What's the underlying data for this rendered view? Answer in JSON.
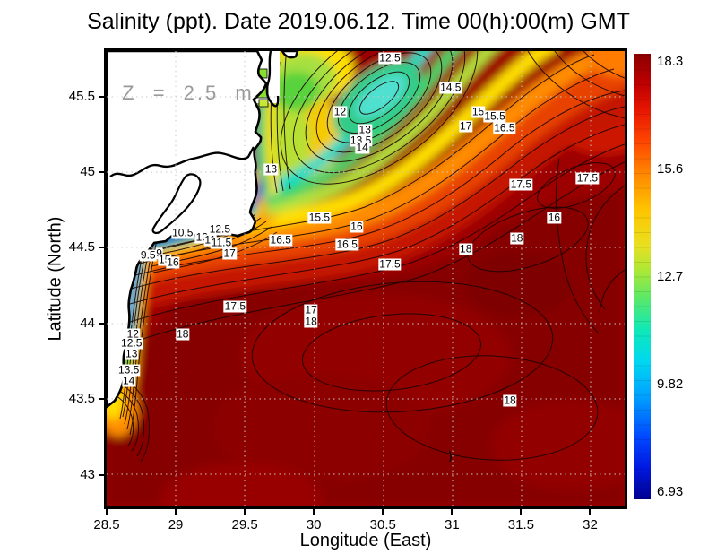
{
  "title": "Salinity (ppt). Date 2019.06.12. Time 00(h):00(m) GMT",
  "chart_data": {
    "type": "heatmap",
    "variable": "Salinity (ppt)",
    "date": "2019.06.12",
    "time": "00(h):00(m) GMT",
    "title": "Salinity (ppt). Date 2019.06.12. Time 00(h):00(m) GMT",
    "xlabel": "Longitude (East)",
    "ylabel": "Latitude (North)",
    "xlim": [
      28.5,
      32.25
    ],
    "ylim": [
      42.79,
      45.8
    ],
    "grid": true,
    "xticks": [
      {
        "label": "28.5",
        "value": 28.5
      },
      {
        "label": "29",
        "value": 29
      },
      {
        "label": "29.5",
        "value": 29.5
      },
      {
        "label": "30",
        "value": 30
      },
      {
        "label": "30.5",
        "value": 30.5
      },
      {
        "label": "31",
        "value": 31
      },
      {
        "label": "31.5",
        "value": 31.5
      },
      {
        "label": "32",
        "value": 32
      }
    ],
    "yticks": [
      {
        "label": "43",
        "value": 43
      },
      {
        "label": "43.5",
        "value": 43.5
      },
      {
        "label": "44",
        "value": 44
      },
      {
        "label": "44.5",
        "value": 44.5
      },
      {
        "label": "45",
        "value": 45
      },
      {
        "label": "45.5",
        "value": 45.5
      }
    ],
    "annotation": {
      "text": "Z = 2.5 m",
      "lon": 29.09,
      "lat": 45.52,
      "color": "#9a9a9a"
    },
    "colorbar": {
      "min": 6.93,
      "max": 18.3,
      "colormap": "jet",
      "position": "right",
      "ticks": [
        "18.3",
        "15.6",
        "12.7",
        "9.82",
        "6.93"
      ]
    },
    "contour_interval": 0.5,
    "contour_labels": [
      {
        "v": "12.5",
        "lon": 30.55,
        "lat": 45.75
      },
      {
        "v": "14.5",
        "lon": 30.99,
        "lat": 45.56
      },
      {
        "v": "15",
        "lon": 31.19,
        "lat": 45.4
      },
      {
        "v": "15.5",
        "lon": 31.31,
        "lat": 45.37
      },
      {
        "v": "17",
        "lon": 31.1,
        "lat": 45.3
      },
      {
        "v": "16.5",
        "lon": 31.38,
        "lat": 45.29
      },
      {
        "v": "12",
        "lon": 30.19,
        "lat": 45.4
      },
      {
        "v": "13",
        "lon": 30.37,
        "lat": 45.28
      },
      {
        "v": "13.5",
        "lon": 30.34,
        "lat": 45.21
      },
      {
        "v": "14",
        "lon": 30.35,
        "lat": 45.16
      },
      {
        "v": "13",
        "lon": 29.69,
        "lat": 45.02
      },
      {
        "v": "17.5",
        "lon": 31.98,
        "lat": 44.96
      },
      {
        "v": "17.5",
        "lon": 31.5,
        "lat": 44.92
      },
      {
        "v": "16",
        "lon": 31.74,
        "lat": 44.7
      },
      {
        "v": "15.5",
        "lon": 30.04,
        "lat": 44.7
      },
      {
        "v": "16",
        "lon": 30.31,
        "lat": 44.64
      },
      {
        "v": "16.5",
        "lon": 29.76,
        "lat": 44.55
      },
      {
        "v": "16.5",
        "lon": 30.24,
        "lat": 44.52
      },
      {
        "v": "18",
        "lon": 31.47,
        "lat": 44.56
      },
      {
        "v": "18",
        "lon": 31.1,
        "lat": 44.49
      },
      {
        "v": "17.5",
        "lon": 30.55,
        "lat": 44.39
      },
      {
        "v": "17",
        "lon": 29.39,
        "lat": 44.46
      },
      {
        "v": "10.5",
        "lon": 29.05,
        "lat": 44.6
      },
      {
        "v": "13",
        "lon": 29.19,
        "lat": 44.57
      },
      {
        "v": "12.5",
        "lon": 29.32,
        "lat": 44.62
      },
      {
        "v": "11",
        "lon": 29.25,
        "lat": 44.55
      },
      {
        "v": "11.5",
        "lon": 29.33,
        "lat": 44.53
      },
      {
        "v": "9.5",
        "lon": 28.8,
        "lat": 44.45
      },
      {
        "v": "9",
        "lon": 28.88,
        "lat": 44.46
      },
      {
        "v": "15",
        "lon": 28.92,
        "lat": 44.42
      },
      {
        "v": "16",
        "lon": 28.98,
        "lat": 44.4
      },
      {
        "v": "17.5",
        "lon": 29.43,
        "lat": 44.11
      },
      {
        "v": "17",
        "lon": 29.98,
        "lat": 44.09
      },
      {
        "v": "18",
        "lon": 29.98,
        "lat": 44.01
      },
      {
        "v": "18",
        "lon": 29.05,
        "lat": 43.93
      },
      {
        "v": "12",
        "lon": 28.69,
        "lat": 43.93
      },
      {
        "v": "12.5",
        "lon": 28.68,
        "lat": 43.87
      },
      {
        "v": "13",
        "lon": 28.68,
        "lat": 43.8
      },
      {
        "v": "13.5",
        "lon": 28.66,
        "lat": 43.69
      },
      {
        "v": "14",
        "lon": 28.66,
        "lat": 43.62
      },
      {
        "v": "18",
        "lon": 31.42,
        "lat": 43.49
      }
    ],
    "features": [
      "Low-salinity river plume (7-11 ppt, dark blue) hugging the NW coast near the Danube delta",
      "Cool cyan-green tongue (12-14.5 ppt) extending northeast in the upper part of the basin",
      "High salinity (17.5-18.3 ppt, dark red) over the southern and eastern open sea",
      "White land mask with thick black coastline in the upper-left corner"
    ],
    "colors": {
      "land": "#ffffff",
      "coastline": "#000000",
      "max_color": "#8b0000",
      "min_color": "#00008f",
      "gridline": "#d0d0d0"
    }
  }
}
